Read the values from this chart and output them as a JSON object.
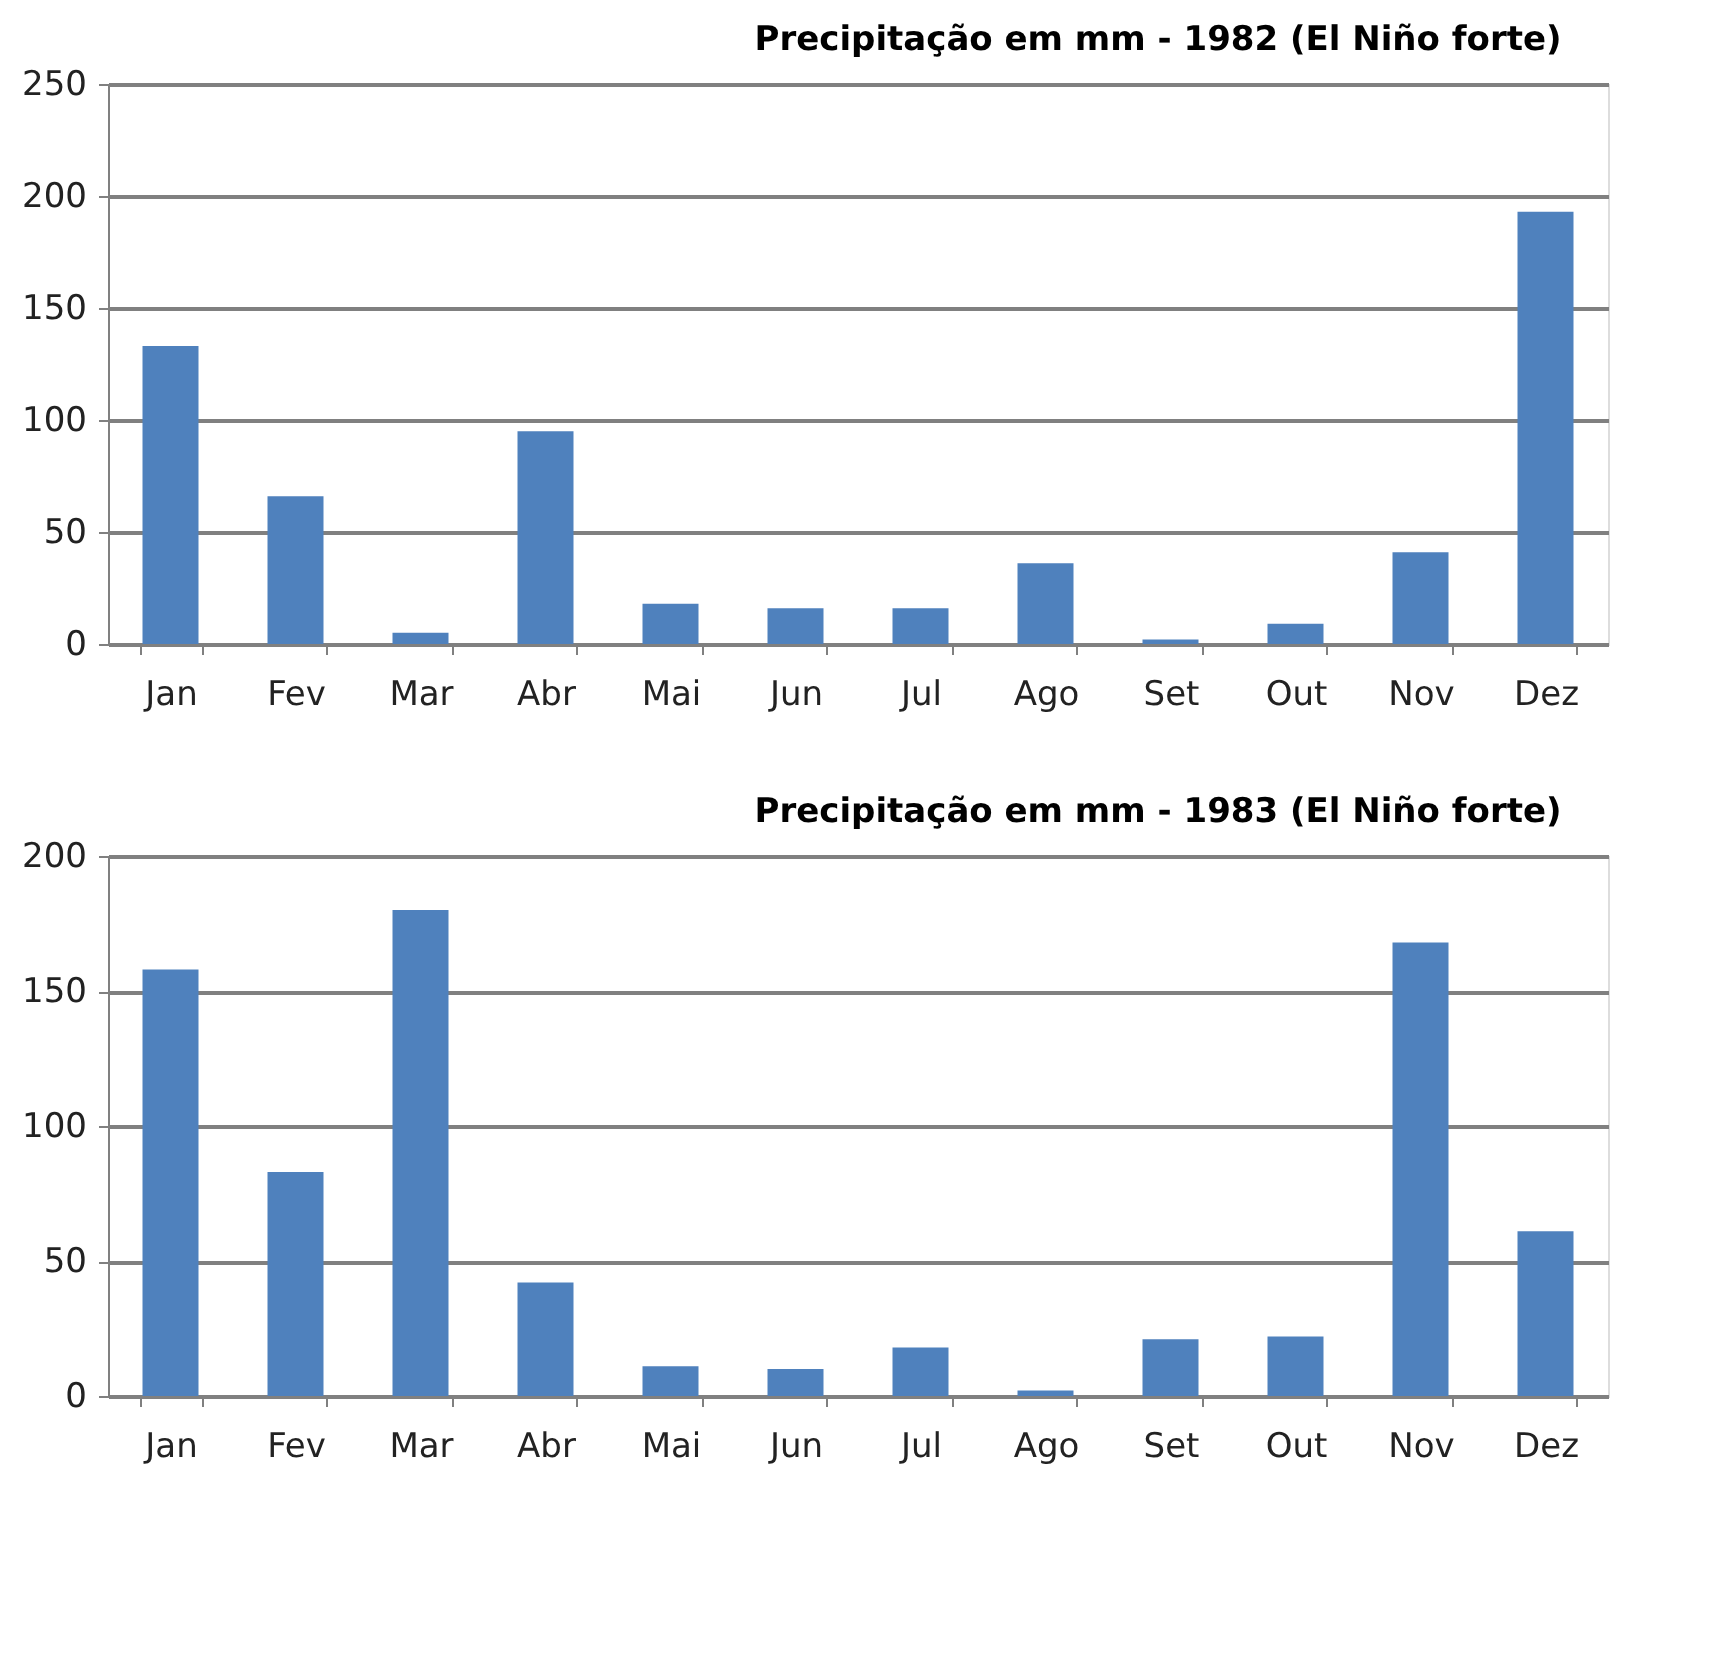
{
  "chart_data": [
    {
      "type": "bar",
      "title": "Precipitação em mm - 1982 (El Niño forte)",
      "categories": [
        "Jan",
        "Fev",
        "Mar",
        "Abr",
        "Mai",
        "Jun",
        "Jul",
        "Ago",
        "Set",
        "Out",
        "Nov",
        "Dez"
      ],
      "values": [
        133,
        66,
        5,
        95,
        18,
        16,
        16,
        36,
        2,
        9,
        41,
        193
      ],
      "color": "#4f81bd",
      "ylim": [
        0,
        250
      ],
      "yticks": [
        0,
        50,
        100,
        150,
        200,
        250
      ],
      "grid": "y"
    },
    {
      "type": "bar",
      "title": "Precipitação em mm - 1983 (El Niño forte)",
      "categories": [
        "Jan",
        "Fev",
        "Mar",
        "Abr",
        "Mai",
        "Jun",
        "Jul",
        "Ago",
        "Set",
        "Out",
        "Nov",
        "Dez"
      ],
      "values": [
        158,
        83,
        180,
        42,
        11,
        10,
        18,
        2,
        21,
        22,
        168,
        61
      ],
      "color": "#4f81bd",
      "ylim": [
        0,
        200
      ],
      "yticks": [
        0,
        50,
        100,
        150,
        200
      ],
      "grid": "y"
    }
  ]
}
